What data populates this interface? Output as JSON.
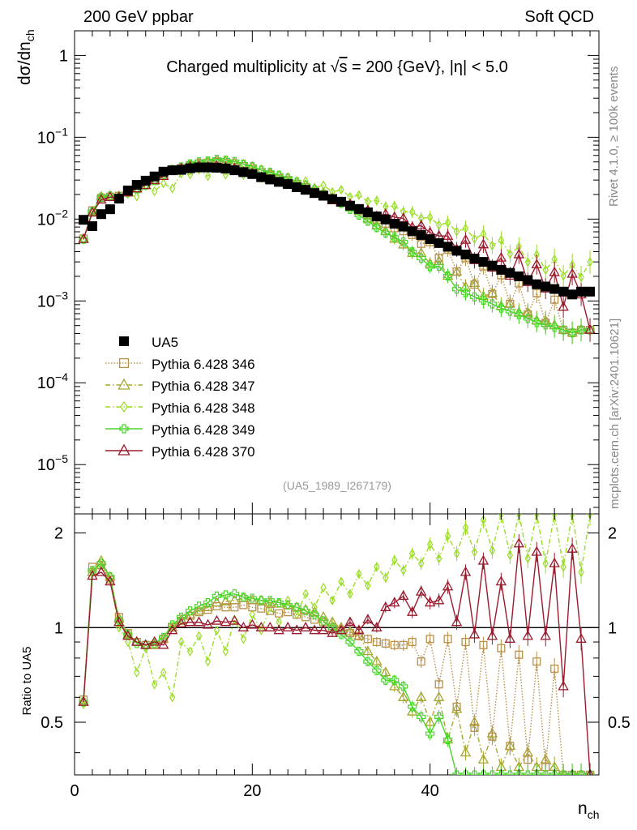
{
  "header": {
    "left": "200 GeV ppbar",
    "right": "Soft QCD"
  },
  "side": {
    "rivet": "Rivet 4.1.0, ≥ 100k events",
    "mcplots": "mcplots.cern.ch [arXiv:2401.10621]"
  },
  "chart_data": {
    "type": "scatter",
    "title_prefix": "Charged multiplicity at ",
    "title_sqrt": "√",
    "title_s": "s",
    "title_suffix": " = 200 {GeV}, |η| < 5.0",
    "analysis_id": "(UA5_1989_I267179)",
    "ylabel_main_1": "dσ/dn",
    "ylabel_main_sub": "ch",
    "ylabel_ratio": "Ratio to UA5",
    "xlabel": "n",
    "xlabel_sub": "ch",
    "xlim": [
      0,
      59
    ],
    "ylim_main": [
      2.5e-06,
      2
    ],
    "ylim_ratio": [
      0.34,
      2.3
    ],
    "x_ticks": [
      "0",
      "20",
      "40"
    ],
    "main_ticks": [
      {
        "base": "1",
        "exp": "",
        "value": 1
      },
      {
        "base": "10",
        "exp": "−1",
        "value": 0.1
      },
      {
        "base": "10",
        "exp": "−2",
        "value": 0.01
      },
      {
        "base": "10",
        "exp": "−3",
        "value": 0.001
      },
      {
        "base": "10",
        "exp": "−4",
        "value": 0.0001
      },
      {
        "base": "10",
        "exp": "−5",
        "value": 1e-05
      }
    ],
    "ratio_ticks": [
      "0.5",
      "1",
      "2"
    ],
    "series": [
      {
        "name": "UA5",
        "color": "#000000",
        "marker": "square-filled",
        "dash": "none"
      },
      {
        "name": "Pythia 6.428 346",
        "color": "#b8914a",
        "marker": "square-open",
        "dash": "1.5,2"
      },
      {
        "name": "Pythia 6.428 347",
        "color": "#a6a82e",
        "marker": "triangle-open",
        "dash": "6,3,1.5,3"
      },
      {
        "name": "Pythia 6.428 348",
        "color": "#99dd22",
        "marker": "diamond-open",
        "dash": "6,3,1.5,3"
      },
      {
        "name": "Pythia 6.428 349",
        "color": "#4ad62c",
        "marker": "cross",
        "dash": "none"
      },
      {
        "name": "Pythia 6.428 370",
        "color": "#9b1b2e",
        "marker": "triangle-open",
        "dash": "none"
      }
    ],
    "ua5_x": [
      1,
      2,
      3,
      4,
      5,
      6,
      7,
      8,
      9,
      10,
      11,
      12,
      13,
      14,
      15,
      16,
      17,
      18,
      19,
      20,
      21,
      22,
      23,
      24,
      25,
      26,
      27,
      28,
      29,
      30,
      31,
      32,
      33,
      34,
      35,
      36,
      37,
      38,
      39,
      40,
      41,
      42,
      43,
      44,
      45,
      46,
      47,
      48,
      49,
      50,
      51,
      52,
      53,
      54,
      55,
      56,
      57,
      58
    ],
    "ua5_y": [
      0.0098,
      0.0082,
      0.0115,
      0.0132,
      0.0178,
      0.0224,
      0.0262,
      0.0295,
      0.0332,
      0.038,
      0.0395,
      0.04,
      0.0418,
      0.0428,
      0.0428,
      0.0425,
      0.0415,
      0.0395,
      0.0375,
      0.0355,
      0.0325,
      0.0305,
      0.0285,
      0.0268,
      0.0245,
      0.0228,
      0.0208,
      0.0193,
      0.0176,
      0.0163,
      0.0146,
      0.0133,
      0.0121,
      0.0108,
      0.0099,
      0.0088,
      0.0081,
      0.0071,
      0.0064,
      0.0057,
      0.0051,
      0.0046,
      0.0041,
      0.0037,
      0.0033,
      0.003,
      0.0027,
      0.0024,
      0.0022,
      0.002,
      0.0018,
      0.0016,
      0.0015,
      0.0014,
      0.0013,
      0.0012,
      0.0013,
      0.0013
    ],
    "ratio_alt": {
      "r346": [
        0.59,
        1.56,
        1.58,
        1.42,
        1.08,
        0.96,
        0.9,
        0.88,
        0.88,
        0.92,
        1.0,
        1.05,
        1.09,
        1.12,
        1.14,
        1.17,
        1.16,
        1.16,
        1.18,
        1.16,
        1.15,
        1.13,
        1.11,
        1.12,
        1.1,
        1.08,
        1.06,
        1.04,
        1.0,
        0.98,
        0.96,
        0.94,
        0.92,
        0.9,
        0.89,
        0.88,
        0.88,
        0.9,
        0.78,
        0.92,
        0.66,
        0.92,
        0.56,
        0.9,
        0.48,
        0.88,
        0.45,
        0.86,
        0.42,
        0.82,
        0.38,
        0.78,
        0.36,
        0.74,
        0.34,
        0.34,
        0.34,
        0.34
      ],
      "r347": [
        0.58,
        1.5,
        1.63,
        1.45,
        1.07,
        0.95,
        0.9,
        0.88,
        0.88,
        0.92,
        1.0,
        1.06,
        1.1,
        1.13,
        1.16,
        1.2,
        1.21,
        1.22,
        1.24,
        1.22,
        1.22,
        1.2,
        1.19,
        1.18,
        1.16,
        1.14,
        1.12,
        1.08,
        1.04,
        1.0,
        0.97,
        0.94,
        0.84,
        0.78,
        0.72,
        0.65,
        0.6,
        0.54,
        0.6,
        0.5,
        0.6,
        0.44,
        0.55,
        0.4,
        0.5,
        0.38,
        0.46,
        0.36,
        0.42,
        0.36,
        0.4,
        0.36,
        0.38,
        0.36,
        0.34,
        0.34,
        0.34,
        0.34
      ],
      "r348": [
        0.57,
        1.5,
        1.58,
        1.42,
        1.0,
        0.9,
        0.72,
        0.86,
        0.66,
        0.72,
        0.6,
        0.9,
        0.84,
        0.94,
        0.78,
        0.98,
        0.84,
        1.06,
        0.92,
        1.1,
        0.98,
        1.16,
        1.04,
        1.22,
        1.1,
        1.28,
        1.16,
        1.34,
        1.22,
        1.4,
        1.28,
        1.48,
        1.36,
        1.56,
        1.44,
        1.64,
        1.52,
        1.72,
        1.6,
        1.84,
        1.66,
        1.96,
        1.72,
        2.08,
        1.74,
        2.2,
        1.76,
        2.3,
        1.7,
        2.3,
        1.66,
        2.3,
        1.6,
        2.3,
        1.56,
        2.3,
        1.5,
        2.3
      ],
      "r349": [
        0.58,
        1.52,
        1.6,
        1.45,
        1.05,
        0.95,
        0.89,
        0.88,
        0.89,
        0.93,
        1.02,
        1.08,
        1.13,
        1.17,
        1.2,
        1.26,
        1.27,
        1.28,
        1.25,
        1.24,
        1.22,
        1.22,
        1.2,
        1.18,
        1.16,
        1.13,
        1.1,
        1.05,
        1.0,
        0.95,
        0.9,
        0.84,
        0.78,
        0.73,
        0.68,
        0.68,
        0.65,
        0.56,
        0.52,
        0.46,
        0.52,
        0.44,
        0.34,
        0.34,
        0.34,
        0.34,
        0.34,
        0.34,
        0.34,
        0.34,
        0.34,
        0.34,
        0.34,
        0.34,
        0.34,
        0.34,
        0.34,
        0.34
      ],
      "r370": [
        0.58,
        1.46,
        1.5,
        1.4,
        1.04,
        0.94,
        0.9,
        0.88,
        0.9,
        0.88,
        0.98,
        1.03,
        1.04,
        1.04,
        1.02,
        1.05,
        1.04,
        1.05,
        1.0,
        1.02,
        1.0,
        1.0,
        0.98,
        1.0,
        0.98,
        1.0,
        0.98,
        0.98,
        0.96,
        0.98,
        1.04,
        0.98,
        1.06,
        1.0,
        1.16,
        1.2,
        1.26,
        1.12,
        1.3,
        1.2,
        1.22,
        1.35,
        1.04,
        1.5,
        0.95,
        1.63,
        0.94,
        1.4,
        0.92,
        1.85,
        0.94,
        1.74,
        0.94,
        1.6,
        0.65,
        1.78,
        0.92,
        0.34
      ]
    }
  }
}
